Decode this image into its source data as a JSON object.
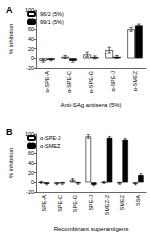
{
  "chart_data": [
    {
      "type": "bar",
      "title": "A",
      "categories": [
        "α-SPE-A",
        "α-SPE-C",
        "α-SPE-G",
        "α-SPE-J",
        "α-SMEZ"
      ],
      "series": [
        {
          "name": "96/2 (5%)",
          "color": "#ffffff",
          "values": [
            -5,
            3,
            8,
            17,
            60
          ],
          "errors": [
            3,
            3,
            5,
            6,
            4
          ]
        },
        {
          "name": "99/1 (5%)",
          "color": "#000000",
          "values": [
            -3,
            -5,
            2,
            3,
            68
          ],
          "errors": [
            2,
            3,
            3,
            3,
            3
          ]
        }
      ],
      "x_label": "Anti-SAg antisera (5%)",
      "y_label": "% inhibition",
      "ylim": [
        -20,
        100
      ],
      "yticks": [
        -20,
        0,
        20,
        40,
        60,
        80,
        100
      ],
      "legend": "top-left",
      "grid": false
    },
    {
      "type": "bar",
      "title": "B",
      "categories": [
        "SPE-A",
        "SPE-C",
        "SPE-G",
        "SPE-J",
        "SMEZ-2",
        "SMEZ",
        "SSA"
      ],
      "series": [
        {
          "name": "α-SPE-J",
          "color": "#ffffff",
          "values": [
            0,
            -3,
            5,
            95,
            0,
            -2,
            -3
          ],
          "errors": [
            2,
            2,
            3,
            4,
            2,
            2,
            2
          ]
        },
        {
          "name": "α-SMEZ",
          "color": "#000000",
          "values": [
            -3,
            -2,
            -2,
            -5,
            92,
            88,
            15
          ],
          "errors": [
            2,
            2,
            2,
            2,
            3,
            3,
            3
          ]
        }
      ],
      "x_label": "Recombinant superantigens",
      "y_label": "% inhibition",
      "ylim": [
        -20,
        100
      ],
      "yticks": [
        -20,
        0,
        20,
        40,
        60,
        80,
        100
      ],
      "legend": "top-left",
      "grid": false
    }
  ]
}
